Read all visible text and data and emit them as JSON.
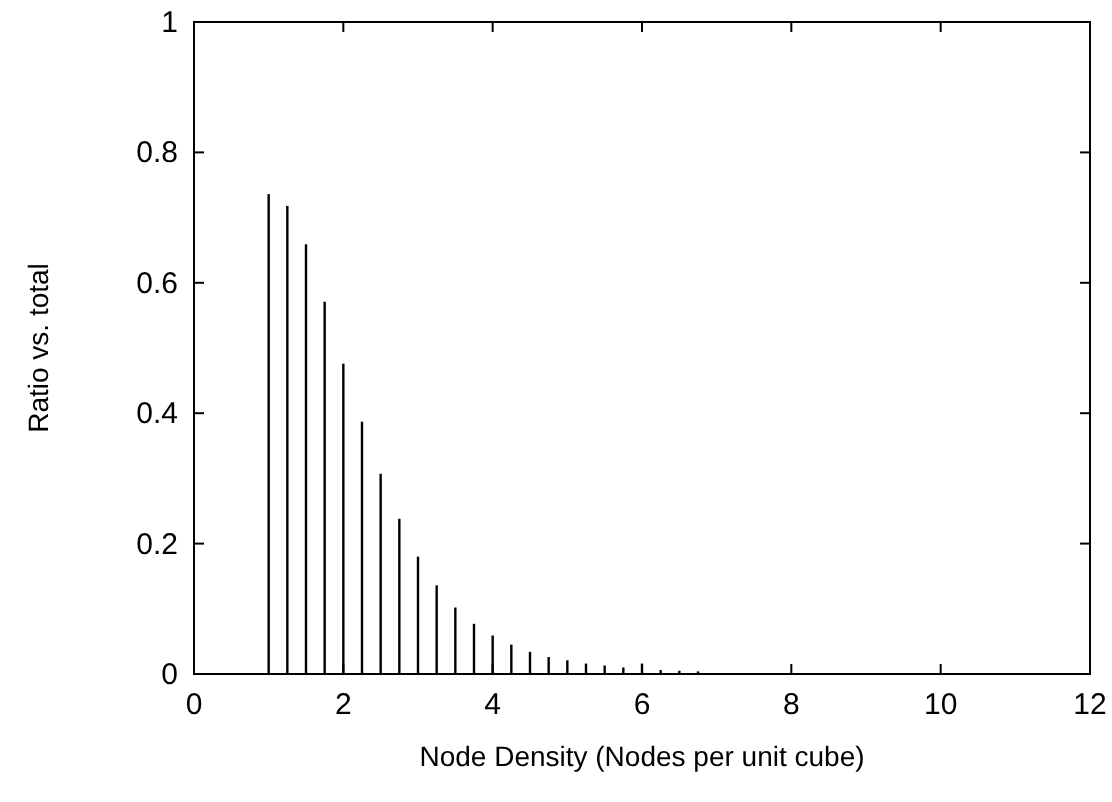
{
  "chart_data": {
    "type": "bar",
    "xlabel": "Node Density (Nodes per unit cube)",
    "ylabel": "Ratio vs. total",
    "x": [
      1.0,
      1.25,
      1.5,
      1.75,
      2.0,
      2.25,
      2.5,
      2.75,
      3.0,
      3.25,
      3.5,
      3.75,
      4.0,
      4.25,
      4.5,
      4.75,
      5.0,
      5.25,
      5.5,
      5.75,
      6.0,
      6.25,
      6.5,
      6.75
    ],
    "values": [
      0.736,
      0.718,
      0.659,
      0.571,
      0.476,
      0.387,
      0.307,
      0.238,
      0.18,
      0.136,
      0.102,
      0.077,
      0.059,
      0.045,
      0.034,
      0.026,
      0.021,
      0.016,
      0.013,
      0.01,
      0.016,
      0.006,
      0.005,
      0.004
    ],
    "color": "#000000",
    "xlim": [
      0,
      12
    ],
    "xticks": [
      0,
      2,
      4,
      6,
      8,
      10,
      12
    ],
    "ylim": [
      0,
      1
    ],
    "yticks": [
      0,
      0.2,
      0.4,
      0.6,
      0.8,
      1
    ]
  }
}
